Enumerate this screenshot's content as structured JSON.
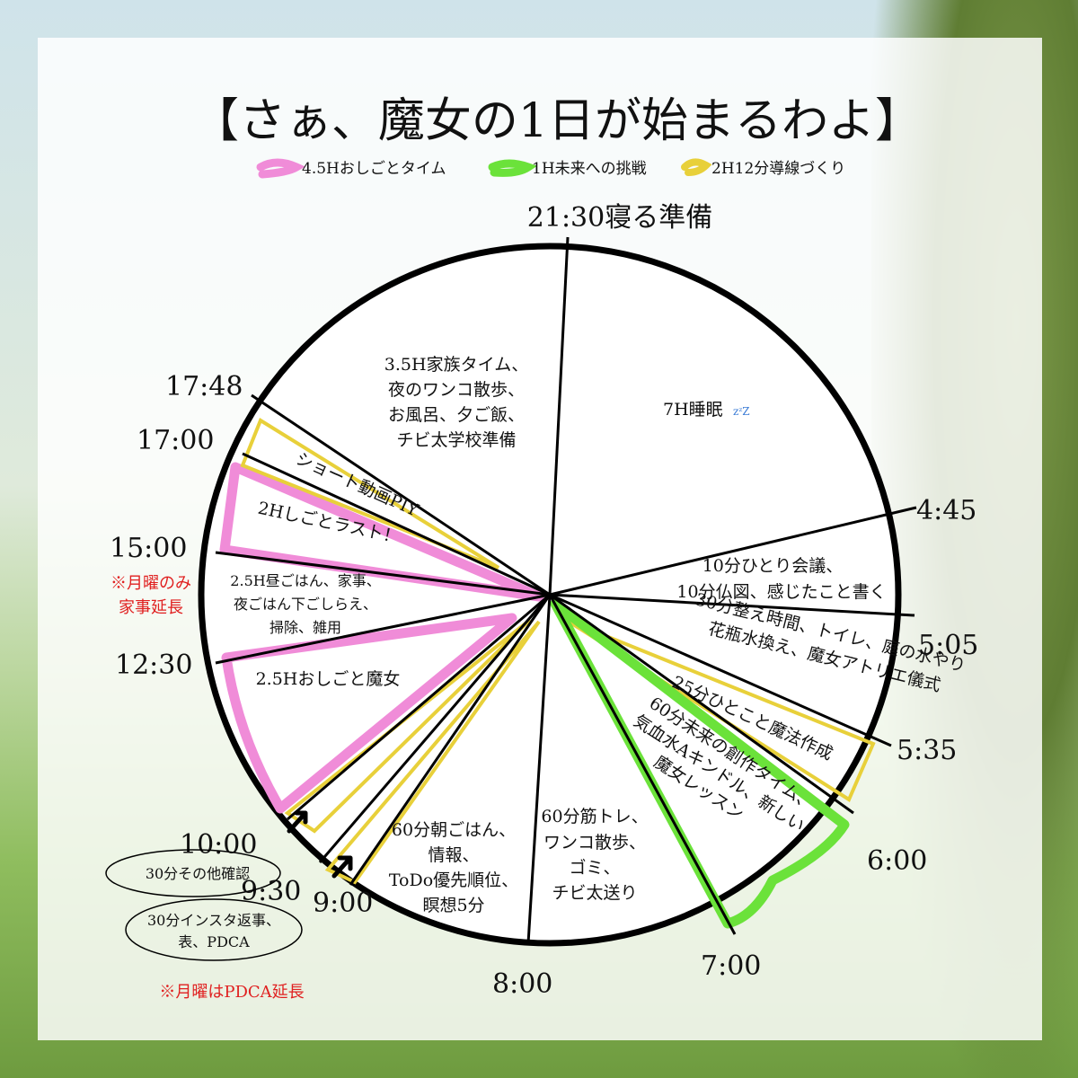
{
  "title": "【さぁ、魔女の1日が始まるわよ】",
  "legend": [
    {
      "label": "4.5Hおしごとタイム",
      "color": "#f08cd8"
    },
    {
      "label": "1H未来への挑戦",
      "color": "#6be23a"
    },
    {
      "label": "2H12分導線づくり",
      "color": "#e8d03a"
    }
  ],
  "times": {
    "t2130": "21:30寝る準備",
    "t445": "4:45",
    "t505": "5:05",
    "t535": "5:35",
    "t600": "6:00",
    "t700": "7:00",
    "t800": "8:00",
    "t900": "9:00",
    "t930": "9:30",
    "t1000": "10:00",
    "t1230": "12:30",
    "t1500": "15:00",
    "t1700": "17:00",
    "t1748": "17:48"
  },
  "segments": {
    "sleep": "7H睡眠",
    "meeting": [
      "10分ひとり会議、",
      "10分仏図、感じたこと書く"
    ],
    "prep": [
      "30分整え時間、トイレ、庭の水やり",
      "花瓶水換え、魔女アトリエ儀式"
    ],
    "magic": "25分ひとこと魔法作成",
    "future": [
      "60分未来の創作タイム、",
      "気血水Aキンドル、新しい",
      "魔女レッスン"
    ],
    "muscle": [
      "60分筋トレ、",
      "ワンコ散歩、",
      "ゴミ、",
      "チビ太送り"
    ],
    "breakfast": [
      "60分朝ごはん、",
      "情報、",
      "ToDo優先順位、",
      "瞑想5分"
    ],
    "insta": [
      "30分インスタ返事、",
      "表、PDCA"
    ],
    "other": "30分その他確認",
    "work1": "2.5Hおしごと魔女",
    "lunch": [
      "2.5H昼ごはん、家事、",
      "夜ごはん下ごしらえ、",
      "掃除、雑用"
    ],
    "work2": "2Hしごとラスト！",
    "short": "ショート動画PIY",
    "family": [
      "3.5H家族タイム、",
      "夜のワンコ散歩、",
      "お風呂、夕ご飯、",
      "チビ太学校準備"
    ]
  },
  "notes": {
    "monday_house": [
      "※月曜のみ",
      "家事延長"
    ],
    "monday_pdca": "※月曜はPDCA延長"
  }
}
